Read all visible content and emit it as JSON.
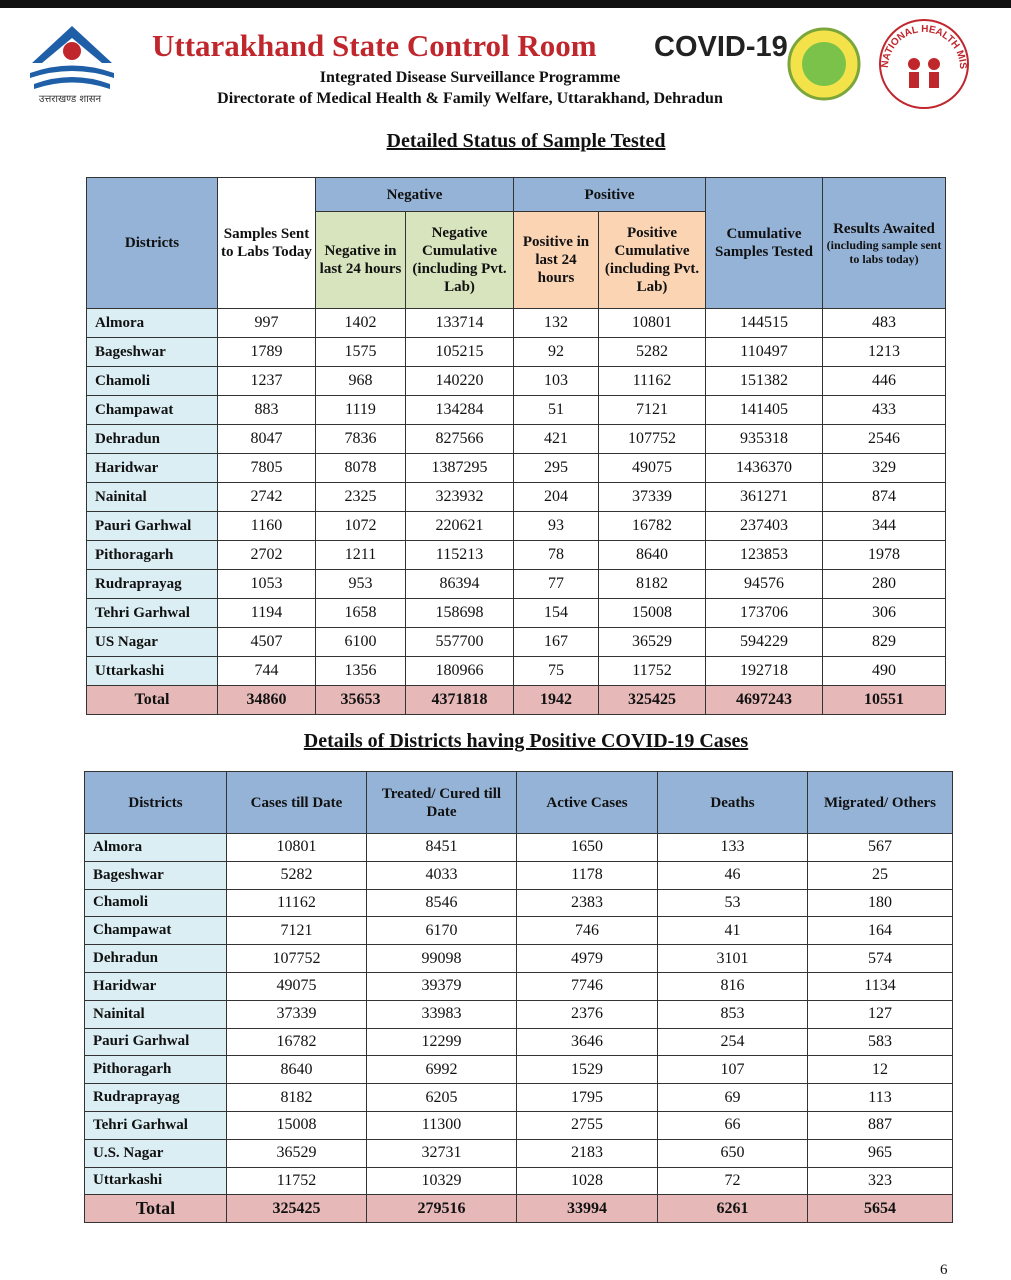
{
  "header": {
    "logo_text": "उत्तराखण्ड शासन",
    "title": "Uttarakhand State Control Room",
    "covid": "COVID-19",
    "subtitle": "Integrated Disease Surveillance Programme",
    "department": "Directorate of Medical Health & Family Welfare, Uttarakhand, Dehradun",
    "nhm_text": "NATIONAL HEALTH MISSION"
  },
  "table1": {
    "title": "Detailed Status of Sample Tested",
    "headers": {
      "districts": "Districts",
      "samples": "Samples Sent to Labs Today",
      "negative": "Negative",
      "positive": "Positive",
      "neg24": "Negative in last 24 hours",
      "negcum": "Negative Cumulative (including Pvt. Lab)",
      "pos24": "Positive in last 24 hours",
      "poscum": "Positive Cumulative (including Pvt. Lab)",
      "cumtested": "Cumulative Samples Tested",
      "results": "Results Awaited",
      "results_note": "(including sample sent to labs today)"
    },
    "rows": [
      [
        "Almora",
        997,
        1402,
        133714,
        132,
        10801,
        144515,
        483
      ],
      [
        "Bageshwar",
        1789,
        1575,
        105215,
        92,
        5282,
        110497,
        1213
      ],
      [
        "Chamoli",
        1237,
        968,
        140220,
        103,
        11162,
        151382,
        446
      ],
      [
        "Champawat",
        883,
        1119,
        134284,
        51,
        7121,
        141405,
        433
      ],
      [
        "Dehradun",
        8047,
        7836,
        827566,
        421,
        107752,
        935318,
        2546
      ],
      [
        "Haridwar",
        7805,
        8078,
        1387295,
        295,
        49075,
        1436370,
        329
      ],
      [
        "Nainital",
        2742,
        2325,
        323932,
        204,
        37339,
        361271,
        874
      ],
      [
        "Pauri Garhwal",
        1160,
        1072,
        220621,
        93,
        16782,
        237403,
        344
      ],
      [
        "Pithoragarh",
        2702,
        1211,
        115213,
        78,
        8640,
        123853,
        1978
      ],
      [
        "Rudraprayag",
        1053,
        953,
        86394,
        77,
        8182,
        94576,
        280
      ],
      [
        "Tehri Garhwal",
        1194,
        1658,
        158698,
        154,
        15008,
        173706,
        306
      ],
      [
        "US Nagar",
        4507,
        6100,
        557700,
        167,
        36529,
        594229,
        829
      ],
      [
        "Uttarkashi",
        744,
        1356,
        180966,
        75,
        11752,
        192718,
        490
      ]
    ],
    "total": [
      "Total",
      34860,
      35653,
      4371818,
      1942,
      325425,
      4697243,
      10551
    ]
  },
  "table2": {
    "title": "Details of Districts having Positive COVID-19 Cases",
    "headers": [
      "Districts",
      "Cases till Date",
      "Treated/ Cured till Date",
      "Active Cases",
      "Deaths",
      "Migrated/ Others"
    ],
    "rows": [
      [
        "Almora",
        10801,
        8451,
        1650,
        133,
        567
      ],
      [
        "Bageshwar",
        5282,
        4033,
        1178,
        46,
        25
      ],
      [
        "Chamoli",
        11162,
        8546,
        2383,
        53,
        180
      ],
      [
        "Champawat",
        7121,
        6170,
        746,
        41,
        164
      ],
      [
        "Dehradun",
        107752,
        99098,
        4979,
        3101,
        574
      ],
      [
        "Haridwar",
        49075,
        39379,
        7746,
        816,
        1134
      ],
      [
        "Nainital",
        37339,
        33983,
        2376,
        853,
        127
      ],
      [
        "Pauri Garhwal",
        16782,
        12299,
        3646,
        254,
        583
      ],
      [
        "Pithoragarh",
        8640,
        6992,
        1529,
        107,
        12
      ],
      [
        "Rudraprayag",
        8182,
        6205,
        1795,
        69,
        113
      ],
      [
        "Tehri Garhwal",
        15008,
        11300,
        2755,
        66,
        887
      ],
      [
        "U.S. Nagar",
        36529,
        32731,
        2183,
        650,
        965
      ],
      [
        "Uttarkashi",
        11752,
        10329,
        1028,
        72,
        323
      ]
    ],
    "total": [
      "Total",
      325425,
      279516,
      33994,
      6261,
      5654
    ]
  },
  "page_number": 6
}
